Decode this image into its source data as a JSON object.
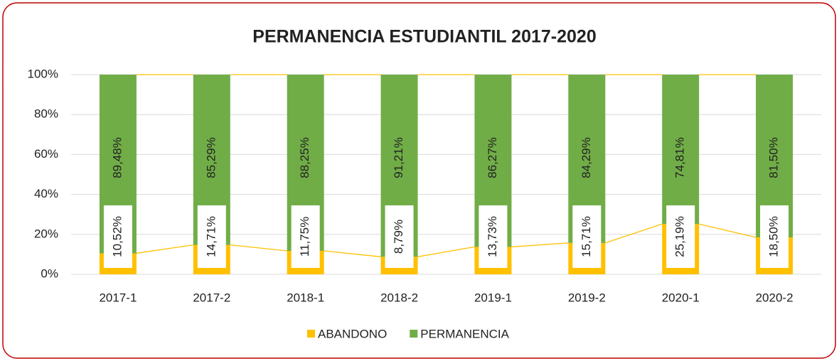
{
  "chart_data": {
    "type": "stacked-bar",
    "title": "PERMANENCIA ESTUDIANTIL 2017-2020",
    "categories": [
      "2017-1",
      "2017-2",
      "2018-1",
      "2018-2",
      "2019-1",
      "2019-2",
      "2020-1",
      "2020-2"
    ],
    "series": [
      {
        "name": "ABANDONO",
        "color": "#ffc000",
        "values": [
          10.52,
          14.71,
          11.75,
          8.79,
          13.73,
          15.71,
          25.19,
          18.5
        ],
        "value_labels": [
          "10,52%",
          "14,71%",
          "11,75%",
          "8,79%",
          "13,73%",
          "15,71%",
          "25,19%",
          "18,50%"
        ]
      },
      {
        "name": "PERMANENCIA",
        "color": "#70ad47",
        "values": [
          89.48,
          85.29,
          88.25,
          91.21,
          86.27,
          84.29,
          74.81,
          81.5
        ],
        "value_labels": [
          "89,48%",
          "85,29%",
          "88,25%",
          "91,21%",
          "86,27%",
          "84,29%",
          "74,81%",
          "81,50%"
        ]
      }
    ],
    "ylim": [
      0,
      100
    ],
    "yticks": [
      {
        "value": 0,
        "label": "0%"
      },
      {
        "value": 20,
        "label": "20%"
      },
      {
        "value": 40,
        "label": "40%"
      },
      {
        "value": 60,
        "label": "60%"
      },
      {
        "value": 80,
        "label": "80%"
      },
      {
        "value": 100,
        "label": "100%"
      }
    ],
    "grid": true,
    "legend": "bottom"
  }
}
